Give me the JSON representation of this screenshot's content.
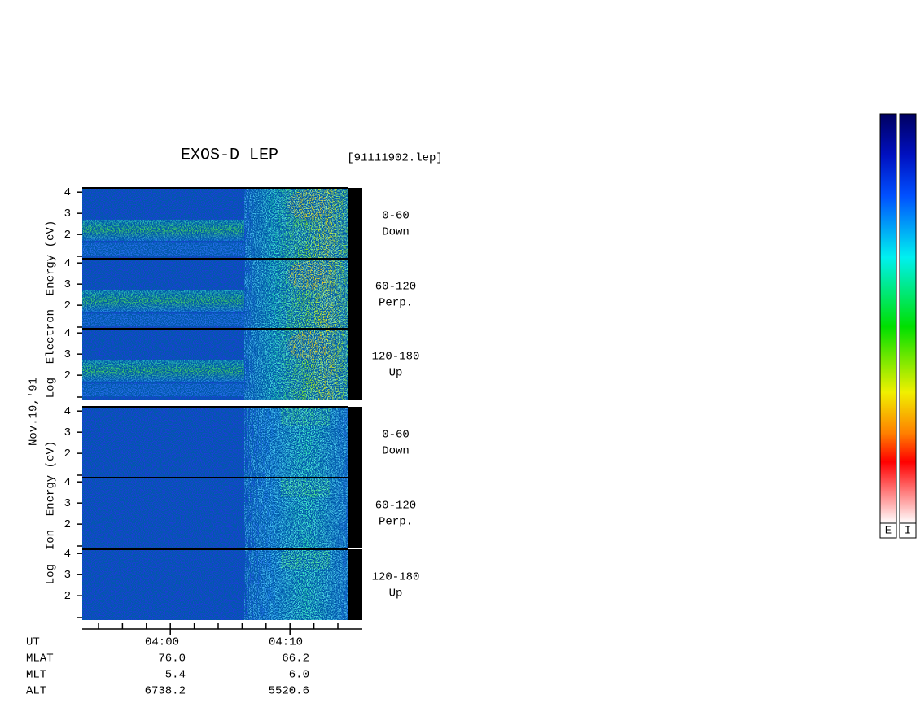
{
  "header": {
    "title": "EXOS-D LEP",
    "file": "[91111902.lep]"
  },
  "date": "Nov.19,'91",
  "ylim": [
    0.85,
    4.2
  ],
  "groups": [
    {
      "axis_label": "Log  Electron  Energy (eV)",
      "kind": "electron",
      "panels": [
        {
          "angle": "0-60",
          "direction": "Down",
          "yticks": [
            2,
            3,
            4
          ]
        },
        {
          "angle": "60-120",
          "direction": "Perp.",
          "yticks": [
            2,
            3,
            4
          ]
        },
        {
          "angle": "120-180",
          "direction": "Up",
          "yticks": [
            2,
            3,
            4
          ]
        }
      ]
    },
    {
      "axis_label": "Log  Ion  Energy (eV)",
      "kind": "ion",
      "panels": [
        {
          "angle": "0-60",
          "direction": "Down",
          "yticks": [
            2,
            3,
            4
          ]
        },
        {
          "angle": "60-120",
          "direction": "Perp.",
          "yticks": [
            2,
            3,
            4
          ]
        },
        {
          "angle": "120-180",
          "direction": "Up",
          "yticks": [
            2,
            3,
            4
          ]
        }
      ]
    }
  ],
  "table": {
    "rows": [
      [
        "UT",
        "04:00",
        "04:10"
      ],
      [
        "MLAT",
        "76.0",
        "66.2"
      ],
      [
        "MLT",
        "5.4",
        "6.0"
      ],
      [
        "ALT",
        "6738.2",
        "5520.6"
      ]
    ]
  },
  "colorbars": [
    "E",
    "I"
  ]
}
